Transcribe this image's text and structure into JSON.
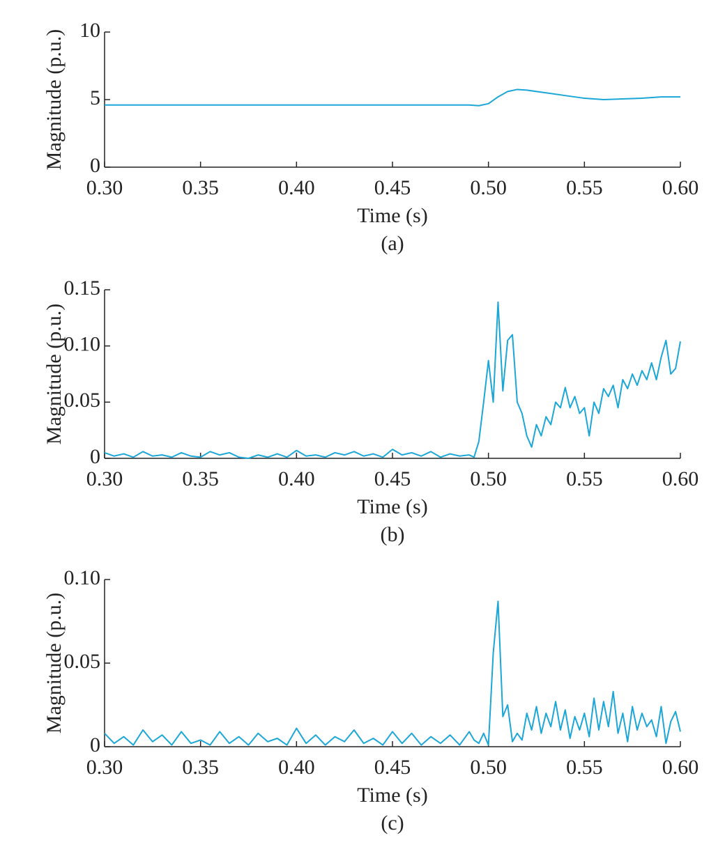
{
  "chart_data": [
    {
      "type": "line",
      "caption": "(a)",
      "xlabel": "Time (s)",
      "ylabel": "Magnitude (p.u.)",
      "color": "#1ba6d8",
      "x": [
        0.3,
        0.31,
        0.32,
        0.33,
        0.34,
        0.35,
        0.36,
        0.37,
        0.38,
        0.39,
        0.4,
        0.41,
        0.42,
        0.43,
        0.44,
        0.45,
        0.46,
        0.47,
        0.48,
        0.49,
        0.495,
        0.5,
        0.505,
        0.51,
        0.515,
        0.52,
        0.53,
        0.54,
        0.55,
        0.56,
        0.57,
        0.58,
        0.59,
        0.6
      ],
      "values": [
        4.6,
        4.6,
        4.6,
        4.6,
        4.6,
        4.6,
        4.6,
        4.6,
        4.6,
        4.6,
        4.6,
        4.6,
        4.6,
        4.6,
        4.6,
        4.6,
        4.6,
        4.6,
        4.6,
        4.6,
        4.55,
        4.7,
        5.2,
        5.6,
        5.75,
        5.7,
        5.5,
        5.3,
        5.1,
        5.0,
        5.05,
        5.1,
        5.2,
        5.2
      ],
      "xlim": [
        0.3,
        0.6
      ],
      "xticks": [
        {
          "value": 0.3,
          "label": "0.30"
        },
        {
          "value": 0.35,
          "label": "0.35"
        },
        {
          "value": 0.4,
          "label": "0.40"
        },
        {
          "value": 0.45,
          "label": "0.45"
        },
        {
          "value": 0.5,
          "label": "0.50"
        },
        {
          "value": 0.55,
          "label": "0.55"
        },
        {
          "value": 0.6,
          "label": "0.60"
        }
      ],
      "ylim": [
        0,
        10
      ],
      "yticks": [
        0,
        5,
        10
      ]
    },
    {
      "type": "line",
      "caption": "(b)",
      "xlabel": "Time (s)",
      "ylabel": "Magnitude (p.u.)",
      "color": "#1ba6d8",
      "x": [
        0.3,
        0.305,
        0.31,
        0.315,
        0.32,
        0.325,
        0.33,
        0.335,
        0.34,
        0.345,
        0.35,
        0.355,
        0.36,
        0.365,
        0.37,
        0.375,
        0.38,
        0.385,
        0.39,
        0.395,
        0.4,
        0.405,
        0.41,
        0.415,
        0.42,
        0.425,
        0.43,
        0.435,
        0.44,
        0.445,
        0.45,
        0.455,
        0.46,
        0.465,
        0.47,
        0.475,
        0.48,
        0.485,
        0.49,
        0.4925,
        0.495,
        0.4975,
        0.5,
        0.5025,
        0.505,
        0.5075,
        0.51,
        0.5125,
        0.515,
        0.5175,
        0.52,
        0.5225,
        0.525,
        0.5275,
        0.53,
        0.5325,
        0.535,
        0.5375,
        0.54,
        0.5425,
        0.545,
        0.5475,
        0.55,
        0.5525,
        0.555,
        0.5575,
        0.56,
        0.5625,
        0.565,
        0.5675,
        0.57,
        0.5725,
        0.575,
        0.5775,
        0.58,
        0.5825,
        0.585,
        0.5875,
        0.59,
        0.5925,
        0.595,
        0.5975,
        0.6
      ],
      "values": [
        0.005,
        0.002,
        0.004,
        0.001,
        0.006,
        0.002,
        0.003,
        0.001,
        0.005,
        0.002,
        0.001,
        0.006,
        0.003,
        0.005,
        0.001,
        0.0,
        0.003,
        0.001,
        0.004,
        0.001,
        0.007,
        0.002,
        0.003,
        0.001,
        0.005,
        0.003,
        0.006,
        0.002,
        0.004,
        0.001,
        0.008,
        0.003,
        0.005,
        0.002,
        0.006,
        0.001,
        0.004,
        0.002,
        0.003,
        0.001,
        0.015,
        0.05,
        0.087,
        0.05,
        0.139,
        0.06,
        0.105,
        0.11,
        0.05,
        0.04,
        0.02,
        0.01,
        0.03,
        0.02,
        0.037,
        0.03,
        0.05,
        0.045,
        0.063,
        0.045,
        0.055,
        0.04,
        0.045,
        0.02,
        0.05,
        0.04,
        0.062,
        0.055,
        0.065,
        0.045,
        0.07,
        0.062,
        0.075,
        0.065,
        0.078,
        0.07,
        0.085,
        0.07,
        0.09,
        0.105,
        0.075,
        0.08,
        0.104
      ],
      "xlim": [
        0.3,
        0.6
      ],
      "xticks": [
        {
          "value": 0.3,
          "label": "0.30"
        },
        {
          "value": 0.35,
          "label": "0.35"
        },
        {
          "value": 0.4,
          "label": "0.40"
        },
        {
          "value": 0.45,
          "label": "0.45"
        },
        {
          "value": 0.5,
          "label": "0.50"
        },
        {
          "value": 0.55,
          "label": "0.55"
        },
        {
          "value": 0.6,
          "label": "0.60"
        }
      ],
      "ylim": [
        0,
        0.15
      ],
      "yticks": [
        0,
        0.05,
        {
          "value": 0.1,
          "label": "0.10"
        },
        0.15
      ]
    },
    {
      "type": "line",
      "caption": "(c)",
      "xlabel": "Time (s)",
      "ylabel": "Magnitude (p.u.)",
      "color": "#1ba6d8",
      "x": [
        0.3,
        0.305,
        0.31,
        0.315,
        0.32,
        0.325,
        0.33,
        0.335,
        0.34,
        0.345,
        0.35,
        0.355,
        0.36,
        0.365,
        0.37,
        0.375,
        0.38,
        0.385,
        0.39,
        0.395,
        0.4,
        0.405,
        0.41,
        0.415,
        0.42,
        0.425,
        0.43,
        0.435,
        0.44,
        0.445,
        0.45,
        0.455,
        0.46,
        0.465,
        0.47,
        0.475,
        0.48,
        0.485,
        0.49,
        0.4925,
        0.495,
        0.4975,
        0.5,
        0.5025,
        0.505,
        0.5075,
        0.51,
        0.5125,
        0.515,
        0.5175,
        0.52,
        0.5225,
        0.525,
        0.5275,
        0.53,
        0.5325,
        0.535,
        0.5375,
        0.54,
        0.5425,
        0.545,
        0.5475,
        0.55,
        0.5525,
        0.555,
        0.5575,
        0.56,
        0.5625,
        0.565,
        0.5675,
        0.57,
        0.5725,
        0.575,
        0.5775,
        0.58,
        0.5825,
        0.585,
        0.5875,
        0.59,
        0.5925,
        0.595,
        0.5975,
        0.6
      ],
      "values": [
        0.008,
        0.002,
        0.006,
        0.001,
        0.01,
        0.003,
        0.007,
        0.001,
        0.009,
        0.002,
        0.004,
        0.001,
        0.009,
        0.002,
        0.006,
        0.001,
        0.008,
        0.003,
        0.005,
        0.001,
        0.011,
        0.002,
        0.007,
        0.001,
        0.006,
        0.003,
        0.01,
        0.002,
        0.005,
        0.001,
        0.009,
        0.002,
        0.008,
        0.001,
        0.006,
        0.002,
        0.007,
        0.001,
        0.009,
        0.004,
        0.002,
        0.008,
        0.001,
        0.056,
        0.087,
        0.018,
        0.025,
        0.003,
        0.008,
        0.004,
        0.02,
        0.01,
        0.024,
        0.008,
        0.02,
        0.012,
        0.027,
        0.01,
        0.022,
        0.005,
        0.018,
        0.01,
        0.02,
        0.006,
        0.029,
        0.01,
        0.027,
        0.012,
        0.033,
        0.008,
        0.02,
        0.003,
        0.024,
        0.01,
        0.02,
        0.012,
        0.016,
        0.006,
        0.024,
        0.002,
        0.015,
        0.021,
        0.009
      ],
      "xlim": [
        0.3,
        0.6
      ],
      "xticks": [
        {
          "value": 0.3,
          "label": "0.30"
        },
        {
          "value": 0.35,
          "label": "0.35"
        },
        {
          "value": 0.4,
          "label": "0.40"
        },
        {
          "value": 0.45,
          "label": "0.45"
        },
        {
          "value": 0.5,
          "label": "0.50"
        },
        {
          "value": 0.55,
          "label": "0.55"
        },
        {
          "value": 0.6,
          "label": "0.60"
        }
      ],
      "ylim": [
        0,
        0.1
      ],
      "yticks": [
        0,
        0.05,
        {
          "value": 0.1,
          "label": "0.10"
        }
      ]
    }
  ]
}
